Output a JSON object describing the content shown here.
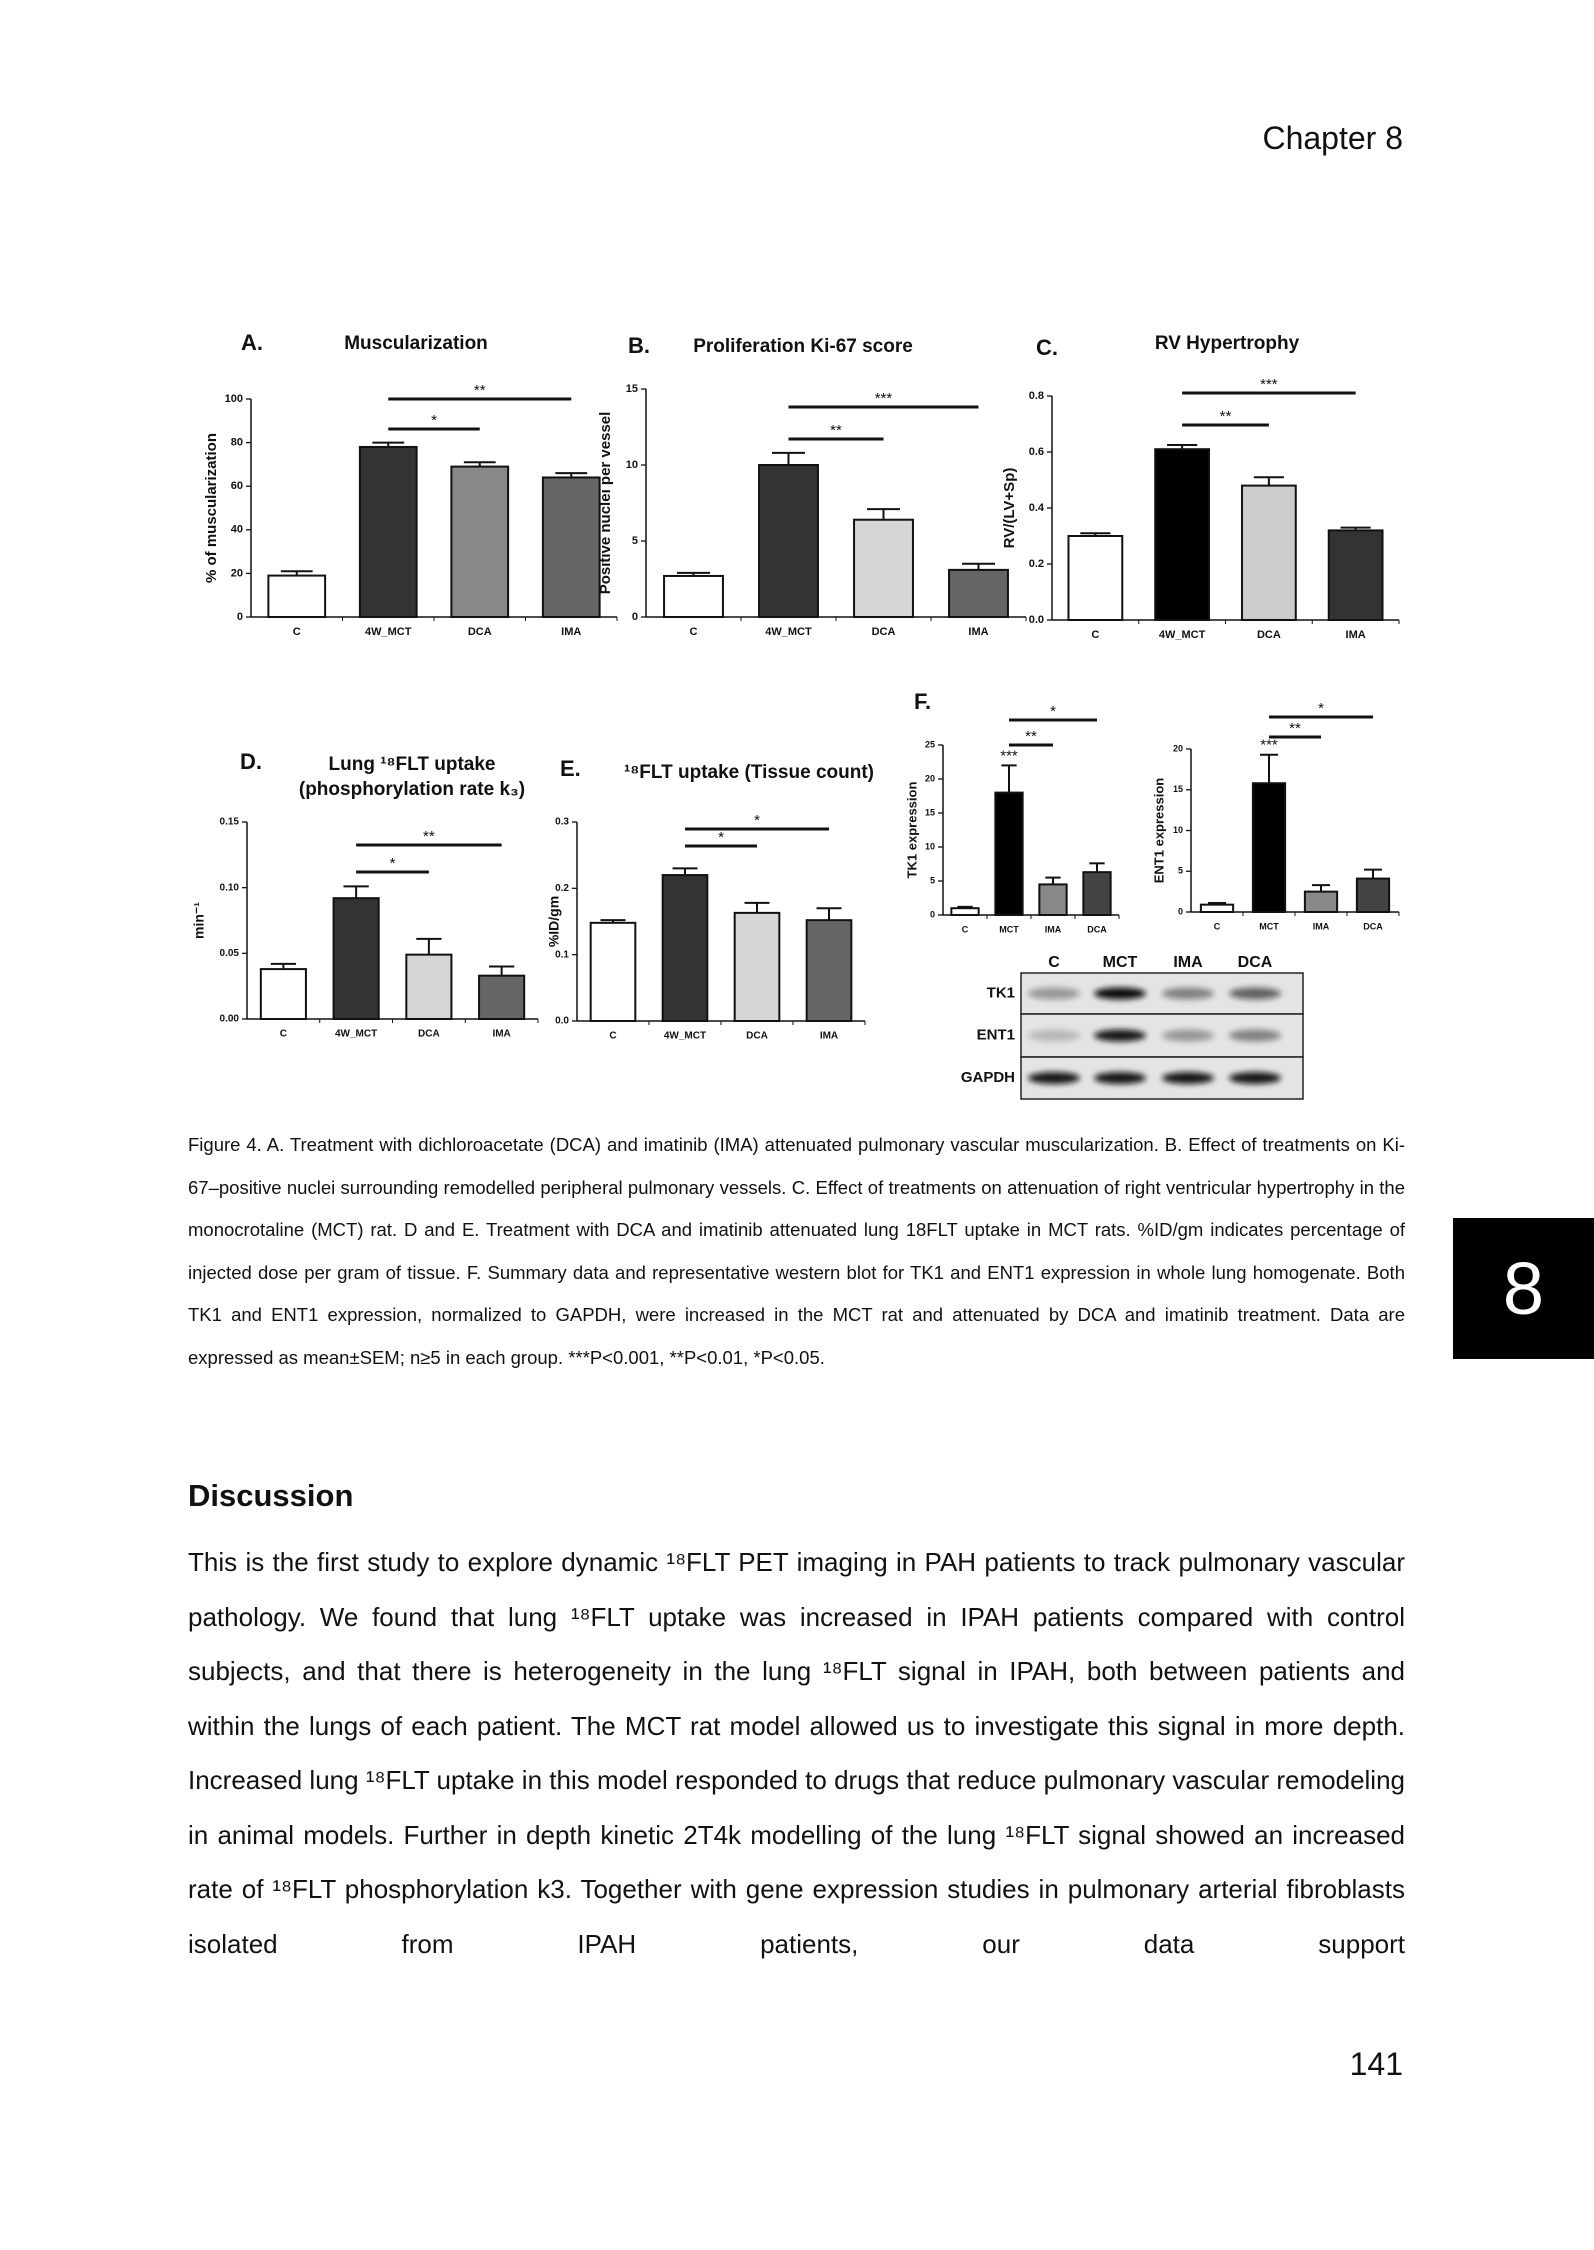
{
  "header": "Chapter 8",
  "chart_data": [
    {
      "type": "bar",
      "panel": "A.",
      "title": "Muscularization",
      "ylabel": "% of musculariza­tion",
      "categories": [
        "C",
        "4W_MCT",
        "DCA",
        "IMA"
      ],
      "values": [
        19,
        78,
        69,
        64
      ],
      "errors": [
        2,
        2,
        2,
        2
      ],
      "colors": [
        "#ffffff",
        "#333333",
        "#888888",
        "#666666"
      ],
      "ylim": [
        0,
        100
      ],
      "yticks": [
        0,
        20,
        40,
        60,
        80,
        100
      ],
      "comparisons": [
        {
          "label": "**",
          "between": [
            "4W_MCT",
            "IMA"
          ]
        },
        {
          "label": "*",
          "between": [
            "4W_MCT",
            "DCA"
          ]
        }
      ]
    },
    {
      "type": "bar",
      "panel": "B.",
      "title": "Proliferation Ki-67 score",
      "ylabel": "Positive nuclei per vessel",
      "categories": [
        "C",
        "4W_MCT",
        "DCA",
        "IMA"
      ],
      "values": [
        2.7,
        10,
        6.4,
        3.1
      ],
      "errors": [
        0.2,
        0.8,
        0.7,
        0.4
      ],
      "colors": [
        "#ffffff",
        "#333333",
        "#d6d6d6",
        "#666666"
      ],
      "ylim": [
        0,
        15
      ],
      "yticks": [
        0,
        5,
        10,
        15
      ],
      "comparisons": [
        {
          "label": "***",
          "between": [
            "4W_MCT",
            "IMA"
          ]
        },
        {
          "label": "**",
          "between": [
            "4W_MCT",
            "DCA"
          ]
        }
      ]
    },
    {
      "type": "bar",
      "panel": "C.",
      "title": "RV Hypertrophy",
      "ylabel": "RV/(LV+Sp)",
      "categories": [
        "C",
        "4W_MCT",
        "DCA",
        "IMA"
      ],
      "values": [
        0.3,
        0.61,
        0.48,
        0.32
      ],
      "errors": [
        0.01,
        0.015,
        0.03,
        0.01
      ],
      "colors": [
        "#ffffff",
        "#000000",
        "#cccccc",
        "#333333"
      ],
      "ylim": [
        0,
        0.8
      ],
      "yticks": [
        {
          "value": 0,
          "label": "0.0"
        },
        0.2,
        0.4,
        0.6,
        0.8
      ],
      "comparisons": [
        {
          "label": "***",
          "between": [
            "4W_MCT",
            "IMA"
          ]
        },
        {
          "label": "**",
          "between": [
            "4W_MCT",
            "DCA"
          ]
        }
      ]
    },
    {
      "type": "bar",
      "panel": "D.",
      "title": [
        "Lung ¹⁸FLT uptake",
        "(phosphorylation rate k₃)"
      ],
      "ylabel": "min⁻¹",
      "categories": [
        "C",
        "4W_MCT",
        "DCA",
        "IMA"
      ],
      "values": [
        0.038,
        0.092,
        0.049,
        0.033
      ],
      "errors": [
        0.004,
        0.009,
        0.012,
        0.007
      ],
      "colors": [
        "#ffffff",
        "#333333",
        "#d6d6d6",
        "#666666"
      ],
      "ylim": [
        0,
        0.15
      ],
      "yticks": [
        {
          "value": 0,
          "label": "0.00"
        },
        0.05,
        {
          "value": 0.1,
          "label": "0.10"
        },
        0.15
      ],
      "comparisons": [
        {
          "label": "**",
          "between": [
            "4W_MCT",
            "IMA"
          ]
        },
        {
          "label": "*",
          "between": [
            "4W_MCT",
            "DCA"
          ]
        }
      ]
    },
    {
      "type": "bar",
      "panel": "E.",
      "title": "¹⁸FLT uptake (Tissue count)",
      "ylabel": "%ID/gm",
      "categories": [
        "C",
        "4W_MCT",
        "DCA",
        "IMA"
      ],
      "values": [
        0.148,
        0.22,
        0.163,
        0.152
      ],
      "errors": [
        0.004,
        0.01,
        0.015,
        0.018
      ],
      "colors": [
        "#ffffff",
        "#333333",
        "#d6d6d6",
        "#666666"
      ],
      "ylim": [
        0,
        0.3
      ],
      "yticks": [
        {
          "value": 0,
          "label": "0.0"
        },
        0.1,
        0.2,
        0.3
      ],
      "comparisons": [
        {
          "label": "*",
          "between": [
            "4W_MCT",
            "IMA"
          ]
        },
        {
          "label": "*",
          "between": [
            "4W_MCT",
            "DCA"
          ]
        }
      ]
    },
    {
      "type": "bar",
      "panel": "F.",
      "ylabel": "TK1 expression",
      "categories": [
        "C",
        "MCT",
        "IMA",
        "DCA"
      ],
      "values": [
        1,
        18,
        4.5,
        6.3
      ],
      "errors": [
        0.2,
        4,
        1,
        1.3
      ],
      "colors": [
        "#ffffff",
        "#000000",
        "#888888",
        "#444444"
      ],
      "ylim": [
        0,
        25
      ],
      "yticks": [
        0,
        5,
        10,
        15,
        20,
        25
      ],
      "comparisons": [
        {
          "label": "*",
          "between": [
            "MCT",
            "DCA"
          ]
        },
        {
          "label": "**",
          "between": [
            "MCT",
            "IMA"
          ]
        },
        {
          "label": "***",
          "between": [
            "MCT"
          ]
        }
      ]
    },
    {
      "type": "bar",
      "ylabel": "ENT1 expression",
      "categories": [
        "C",
        "MCT",
        "IMA",
        "DCA"
      ],
      "values": [
        0.9,
        15.8,
        2.5,
        4.1
      ],
      "errors": [
        0.2,
        3.5,
        0.8,
        1.1
      ],
      "colors": [
        "#ffffff",
        "#000000",
        "#888888",
        "#444444"
      ],
      "ylim": [
        0,
        20
      ],
      "yticks": [
        0,
        5,
        10,
        15,
        20
      ],
      "comparisons": [
        {
          "label": "*",
          "between": [
            "MCT",
            "DCA"
          ]
        },
        {
          "label": "**",
          "between": [
            "MCT",
            "IMA"
          ]
        },
        {
          "label": "***",
          "between": [
            "MCT"
          ]
        }
      ]
    }
  ],
  "blot": {
    "columns": [
      "C",
      "MCT",
      "IMA",
      "DCA"
    ],
    "rows": [
      "TK1",
      "ENT1",
      "GAPDH"
    ]
  },
  "caption": "Figure 4. A. Treatment with dichloroacetate (DCA) and imatinib (IMA) attenuated pulmonary vascular muscularization. B. Effect of treatments on Ki-67–positive nuclei surrounding remodelled peripheral pulmonary vessels. C. Effect of treatments on attenuation of right ventricular hypertrophy in the monocrotaline (MCT) rat. D and E. Treatment with DCA and imatinib attenuated lung 18FLT uptake in MCT rats. %ID/gm indicates percentage of injected dose per gram of tissue. F. Summary data and representative western blot for TK1 and ENT1 expression in whole lung homogenate. Both TK1 and ENT1 expression, normalized to GAPDH, were increased in the MCT rat and attenuated by DCA and imatinib treatment. Data are expressed as mean±SEM; n≥5 in each group. ***P<0.001, **P<0.01, *P<0.05.",
  "section_title": "Discussion",
  "paragraph": "This is the first study to explore dynamic ¹⁸FLT PET imaging in PAH patients to track pulmonary vascular pathology. We found that lung ¹⁸FLT uptake was increased in IPAH patients compared with control subjects, and that there is heterogeneity in the lung ¹⁸FLT signal in IPAH, both between patients and within the lungs of each patient. The MCT rat model allowed us to investigate this signal in more depth. Increased lung ¹⁸FLT uptake in this model responded to drugs that reduce pulmonary vascular remodeling in animal models. Further in depth kinetic 2T4k modelling of the lung ¹⁸FLT signal showed an increased rate of ¹⁸FLT phosphorylation k3. Together with gene expression studies in pulmonary arterial fibroblasts isolated from IPAH patients, our data support",
  "page_number": "141",
  "tab": "8"
}
